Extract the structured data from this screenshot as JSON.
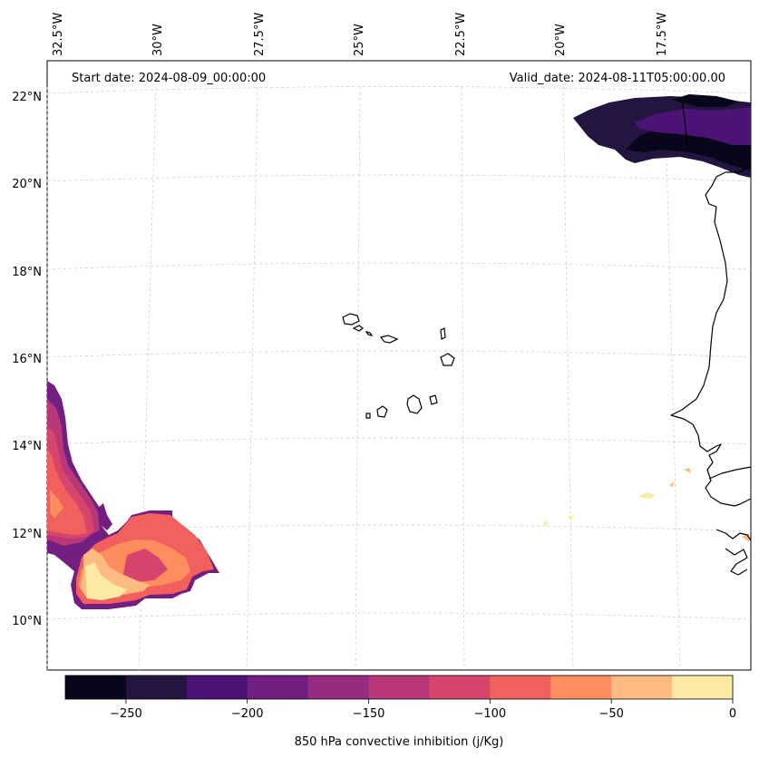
{
  "header": {
    "start_date": "Start date: 2024-08-09_00:00:00",
    "valid_date": "Valid_date: 2024-08-11T05:00:00.00"
  },
  "axes": {
    "lon_labels": [
      "32.5°W",
      "30°W",
      "27.5°W",
      "25°W",
      "22.5°W",
      "20°W",
      "17.5°W"
    ],
    "lat_labels": [
      "22°N",
      "20°N",
      "18°N",
      "16°N",
      "14°N",
      "12°N",
      "10°N"
    ]
  },
  "colorbar": {
    "label": "850 hPa convective inhibition (j/Kg)",
    "tick_labels": [
      "−250",
      "−200",
      "−150",
      "−100",
      "−50",
      "0"
    ],
    "range": [
      -275,
      0
    ],
    "levels": [
      -275,
      -250,
      -225,
      -200,
      -175,
      -150,
      -125,
      -100,
      -75,
      -50,
      -25,
      0
    ],
    "colors": [
      "#07061a",
      "#231540",
      "#4c1275",
      "#721f81",
      "#952c80",
      "#b73779",
      "#d8456c",
      "#f1605d",
      "#fd8d5c",
      "#febb80",
      "#fce9a4"
    ]
  },
  "colors": {
    "coastline": "#000000",
    "grid": "#c8c8c8"
  }
}
